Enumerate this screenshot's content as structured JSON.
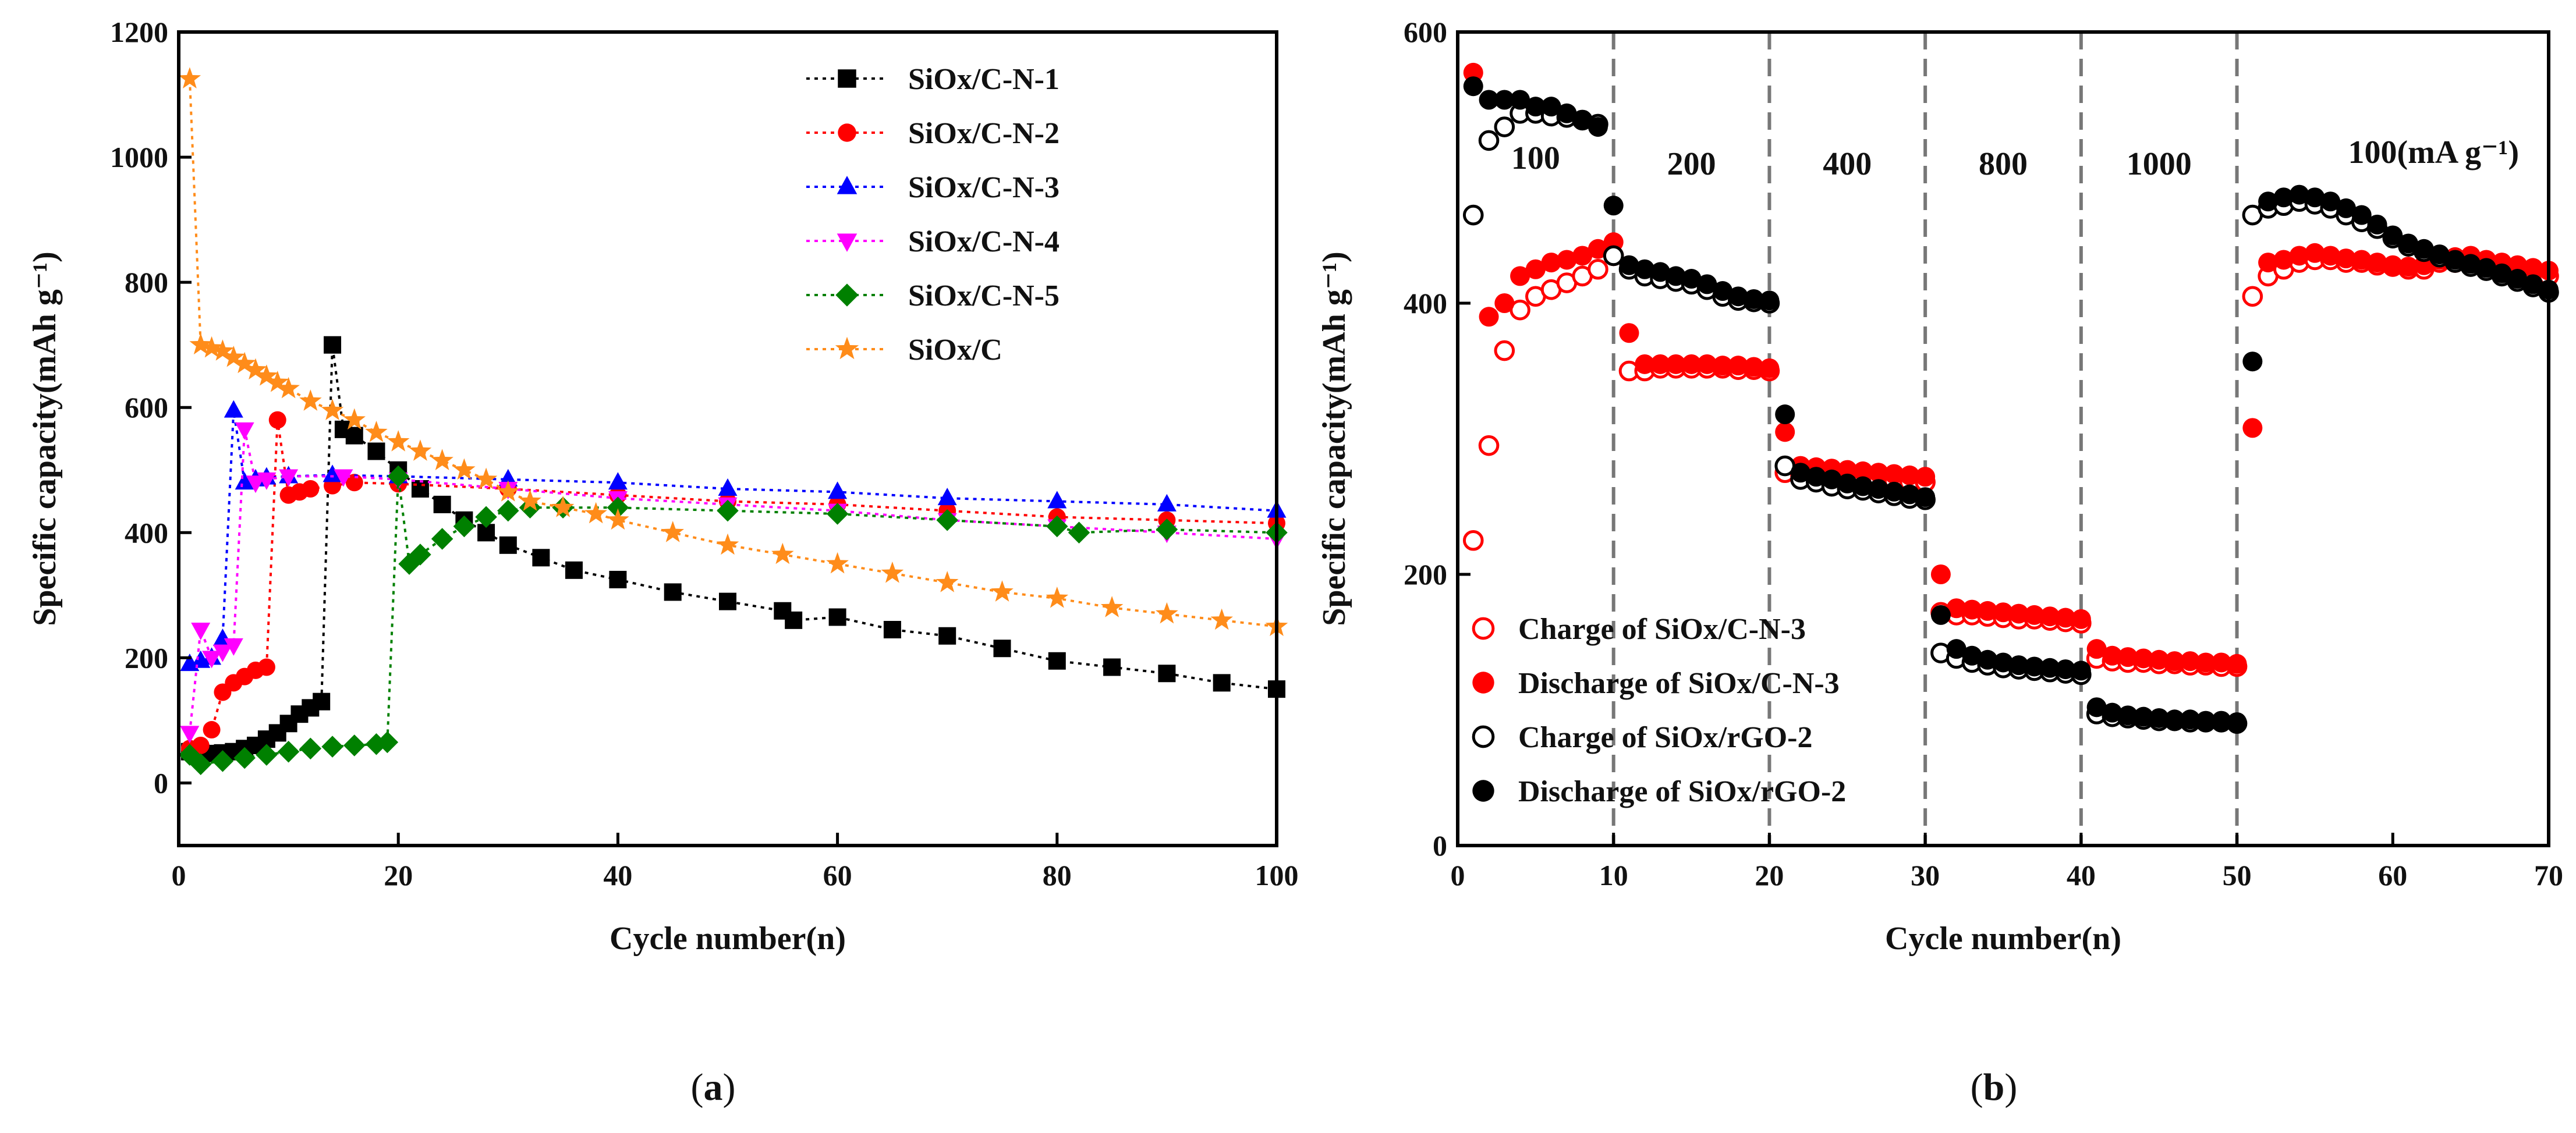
{
  "chart_data": [
    {
      "panel": "a",
      "type": "scatter",
      "xlabel": "Cycle number(n)",
      "ylabel": "Specific capacity(mAh g⁻¹)",
      "xlim": [
        0,
        100
      ],
      "ylim": [
        -100,
        1200
      ],
      "xticks": [
        0,
        20,
        40,
        60,
        80,
        100
      ],
      "yticks": [
        0,
        200,
        400,
        600,
        800,
        1000,
        1200
      ],
      "legend_position": "top-right",
      "series": [
        {
          "name": "SiOx/C-N-1",
          "color": "#000000",
          "marker": "square",
          "line": "dotted",
          "x": [
            1,
            2,
            3,
            4,
            5,
            6,
            7,
            8,
            9,
            10,
            11,
            12,
            13,
            14,
            15,
            16,
            18,
            20,
            22,
            24,
            26,
            28,
            30,
            33,
            36,
            40,
            45,
            50,
            55,
            56,
            60,
            65,
            70,
            75,
            80,
            85,
            90,
            95,
            100
          ],
          "y": [
            50,
            48,
            47,
            48,
            50,
            55,
            60,
            70,
            80,
            95,
            110,
            120,
            130,
            700,
            565,
            555,
            530,
            500,
            470,
            445,
            420,
            400,
            380,
            360,
            340,
            325,
            305,
            290,
            275,
            260,
            265,
            245,
            235,
            215,
            195,
            185,
            175,
            160,
            150
          ]
        },
        {
          "name": "SiOx/C-N-2",
          "color": "#ff0000",
          "marker": "circle",
          "line": "dotted",
          "x": [
            1,
            2,
            3,
            4,
            5,
            6,
            7,
            8,
            9,
            10,
            11,
            12,
            14,
            16,
            20,
            30,
            40,
            50,
            60,
            70,
            80,
            90,
            100
          ],
          "y": [
            55,
            60,
            85,
            145,
            160,
            170,
            180,
            185,
            580,
            460,
            465,
            470,
            475,
            480,
            478,
            470,
            460,
            450,
            445,
            435,
            425,
            420,
            415
          ]
        },
        {
          "name": "SiOx/C-N-3",
          "color": "#0000ff",
          "marker": "triangle-up",
          "line": "dotted",
          "x": [
            1,
            2,
            3,
            4,
            5,
            6,
            7,
            8,
            10,
            14,
            20,
            30,
            40,
            50,
            60,
            70,
            80,
            90,
            100
          ],
          "y": [
            190,
            195,
            200,
            230,
            595,
            480,
            485,
            488,
            490,
            492,
            490,
            485,
            480,
            470,
            465,
            455,
            450,
            445,
            435
          ]
        },
        {
          "name": "SiOx/C-N-4",
          "color": "#ff00ff",
          "marker": "triangle-down",
          "line": "dotted",
          "x": [
            1,
            2,
            3,
            4,
            5,
            6,
            7,
            8,
            10,
            15,
            20,
            30,
            40,
            50,
            60,
            70,
            80,
            90,
            100
          ],
          "y": [
            80,
            245,
            200,
            210,
            220,
            565,
            480,
            485,
            490,
            490,
            485,
            470,
            455,
            445,
            435,
            420,
            410,
            400,
            390
          ]
        },
        {
          "name": "SiOx/C-N-5",
          "color": "#008000",
          "marker": "diamond",
          "line": "dotted",
          "x": [
            1,
            2,
            4,
            6,
            8,
            10,
            12,
            14,
            16,
            18,
            19,
            20,
            21,
            22,
            24,
            26,
            28,
            30,
            32,
            35,
            40,
            50,
            60,
            70,
            80,
            82,
            90,
            100
          ],
          "y": [
            45,
            30,
            35,
            40,
            45,
            50,
            55,
            58,
            60,
            62,
            65,
            490,
            350,
            365,
            390,
            410,
            425,
            435,
            440,
            440,
            440,
            435,
            430,
            420,
            410,
            400,
            405,
            400
          ]
        },
        {
          "name": "SiOx/C",
          "color": "#ff8c1a",
          "marker": "star",
          "line": "dotted",
          "x": [
            1,
            2,
            3,
            4,
            5,
            6,
            7,
            8,
            9,
            10,
            12,
            14,
            16,
            18,
            20,
            22,
            24,
            26,
            28,
            30,
            32,
            35,
            38,
            40,
            45,
            50,
            55,
            60,
            65,
            70,
            75,
            80,
            85,
            90,
            95,
            100
          ],
          "y": [
            1125,
            700,
            695,
            690,
            680,
            670,
            660,
            650,
            640,
            630,
            610,
            595,
            580,
            560,
            545,
            530,
            515,
            500,
            485,
            465,
            450,
            440,
            430,
            420,
            400,
            380,
            365,
            350,
            335,
            320,
            305,
            295,
            280,
            270,
            260,
            250
          ]
        }
      ]
    },
    {
      "panel": "b",
      "type": "scatter",
      "xlabel": "Cycle number(n)",
      "ylabel": "Specific capacity(mAh g⁻¹)",
      "xlim": [
        0,
        70
      ],
      "ylim": [
        0,
        600
      ],
      "xticks": [
        0,
        10,
        20,
        30,
        40,
        50,
        60,
        70
      ],
      "yticks": [
        0,
        200,
        400,
        600
      ],
      "legend_position": "bottom-left",
      "rate_boundaries": [
        10,
        20,
        30,
        40,
        50
      ],
      "rate_labels": [
        "100",
        "200",
        "400",
        "800",
        "1000",
        "100(mA g⁻¹)"
      ],
      "series": [
        {
          "name": "Charge of SiOx/C-N-3",
          "color": "#ff0000",
          "marker": "circle-open",
          "x": [
            1,
            2,
            3,
            4,
            5,
            6,
            7,
            8,
            9,
            10,
            11,
            12,
            13,
            14,
            15,
            16,
            17,
            18,
            19,
            20,
            21,
            22,
            23,
            24,
            25,
            26,
            27,
            28,
            29,
            30,
            31,
            32,
            33,
            34,
            35,
            36,
            37,
            38,
            39,
            40,
            41,
            42,
            43,
            44,
            45,
            46,
            47,
            48,
            49,
            50,
            51,
            52,
            53,
            54,
            55,
            56,
            57,
            58,
            59,
            60,
            61,
            62,
            63,
            64,
            65,
            66,
            67,
            68,
            69,
            70
          ],
          "y": [
            225,
            295,
            365,
            395,
            405,
            410,
            415,
            420,
            425,
            435,
            350,
            350,
            352,
            352,
            352,
            352,
            352,
            351,
            351,
            350,
            275,
            273,
            272,
            272,
            271,
            270,
            270,
            269,
            268,
            268,
            172,
            170,
            170,
            169,
            168,
            167,
            167,
            166,
            165,
            164,
            138,
            136,
            135,
            135,
            134,
            134,
            133,
            133,
            132,
            132,
            405,
            420,
            425,
            430,
            432,
            432,
            430,
            430,
            428,
            427,
            425,
            425,
            430,
            430,
            432,
            428,
            425,
            425,
            422,
            420
          ]
        },
        {
          "name": "Discharge of SiOx/C-N-3",
          "color": "#ff0000",
          "marker": "circle",
          "x": [
            1,
            2,
            3,
            4,
            5,
            6,
            7,
            8,
            9,
            10,
            11,
            12,
            13,
            14,
            15,
            16,
            17,
            18,
            19,
            20,
            21,
            22,
            23,
            24,
            25,
            26,
            27,
            28,
            29,
            30,
            31,
            32,
            33,
            34,
            35,
            36,
            37,
            38,
            39,
            40,
            41,
            42,
            43,
            44,
            45,
            46,
            47,
            48,
            49,
            50,
            51,
            52,
            53,
            54,
            55,
            56,
            57,
            58,
            59,
            60,
            61,
            62,
            63,
            64,
            65,
            66,
            67,
            68,
            69,
            70
          ],
          "y": [
            570,
            390,
            400,
            420,
            425,
            430,
            432,
            435,
            440,
            445,
            378,
            355,
            355,
            355,
            355,
            355,
            354,
            354,
            353,
            352,
            305,
            280,
            279,
            278,
            277,
            276,
            275,
            274,
            273,
            272,
            200,
            175,
            174,
            173,
            172,
            171,
            170,
            169,
            168,
            167,
            145,
            140,
            139,
            138,
            137,
            136,
            136,
            135,
            135,
            134,
            308,
            430,
            432,
            435,
            437,
            435,
            433,
            432,
            430,
            428,
            427,
            428,
            432,
            434,
            435,
            432,
            430,
            428,
            426,
            424
          ]
        },
        {
          "name": "Charge of SiOx/rGO-2",
          "color": "#000000",
          "marker": "circle-open",
          "x": [
            1,
            2,
            3,
            4,
            5,
            6,
            7,
            8,
            9,
            10,
            11,
            12,
            13,
            14,
            15,
            16,
            17,
            18,
            19,
            20,
            21,
            22,
            23,
            24,
            25,
            26,
            27,
            28,
            29,
            30,
            31,
            32,
            33,
            34,
            35,
            36,
            37,
            38,
            39,
            40,
            41,
            42,
            43,
            44,
            45,
            46,
            47,
            48,
            49,
            50,
            51,
            52,
            53,
            54,
            55,
            56,
            57,
            58,
            59,
            60,
            61,
            62,
            63,
            64,
            65,
            66,
            67,
            68,
            69,
            70
          ],
          "y": [
            465,
            520,
            530,
            540,
            540,
            538,
            537,
            535,
            532,
            435,
            425,
            420,
            418,
            416,
            414,
            410,
            405,
            402,
            401,
            400,
            280,
            270,
            268,
            265,
            263,
            262,
            260,
            258,
            256,
            255,
            142,
            138,
            135,
            133,
            131,
            130,
            129,
            128,
            127,
            126,
            97,
            95,
            94,
            93,
            92,
            92,
            91,
            91,
            91,
            90,
            465,
            470,
            472,
            475,
            473,
            470,
            465,
            460,
            455,
            448,
            442,
            438,
            434,
            430,
            427,
            424,
            420,
            416,
            412,
            408
          ]
        },
        {
          "name": "Discharge of SiOx/rGO-2",
          "color": "#000000",
          "marker": "circle",
          "x": [
            1,
            2,
            3,
            4,
            5,
            6,
            7,
            8,
            9,
            10,
            11,
            12,
            13,
            14,
            15,
            16,
            17,
            18,
            19,
            20,
            21,
            22,
            23,
            24,
            25,
            26,
            27,
            28,
            29,
            30,
            31,
            32,
            33,
            34,
            35,
            36,
            37,
            38,
            39,
            40,
            41,
            42,
            43,
            44,
            45,
            46,
            47,
            48,
            49,
            50,
            51,
            52,
            53,
            54,
            55,
            56,
            57,
            58,
            59,
            60,
            61,
            62,
            63,
            64,
            65,
            66,
            67,
            68,
            69,
            70
          ],
          "y": [
            560,
            550,
            550,
            550,
            545,
            545,
            540,
            535,
            530,
            472,
            428,
            425,
            423,
            420,
            418,
            414,
            409,
            405,
            403,
            402,
            318,
            275,
            272,
            270,
            267,
            265,
            263,
            261,
            259,
            257,
            170,
            145,
            140,
            137,
            135,
            133,
            132,
            131,
            130,
            129,
            102,
            98,
            96,
            95,
            94,
            93,
            93,
            92,
            92,
            91,
            357,
            475,
            478,
            480,
            478,
            475,
            470,
            465,
            458,
            450,
            444,
            440,
            436,
            432,
            429,
            426,
            422,
            418,
            414,
            410
          ]
        }
      ]
    }
  ],
  "panel_labels": [
    "(a)",
    "(b)"
  ],
  "panel_label_letters": [
    "a",
    "b"
  ]
}
